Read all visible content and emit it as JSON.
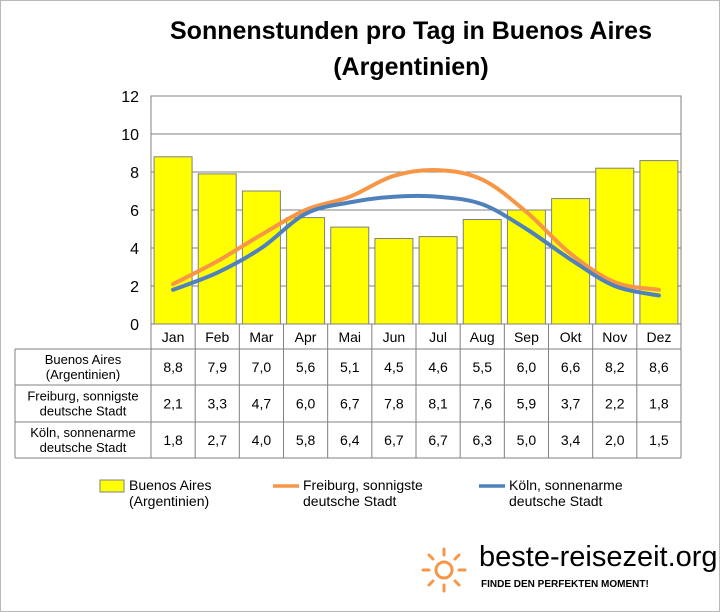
{
  "chart_data": {
    "type": "bar",
    "title_lines": [
      "Sonnenstunden pro Tag in Buenos Aires",
      "(Argentinien)"
    ],
    "xlabel": "",
    "ylabel": "",
    "categories": [
      "Jan",
      "Feb",
      "Mar",
      "Apr",
      "Mai",
      "Jun",
      "Jul",
      "Aug",
      "Sep",
      "Okt",
      "Nov",
      "Dez"
    ],
    "ylim": [
      0,
      12
    ],
    "yticks": [
      "0",
      "2",
      "4",
      "6",
      "8",
      "10",
      "12"
    ],
    "grid": true,
    "legend_position": "bottom",
    "series": [
      {
        "name_lines": [
          "Buenos Aires",
          "(Argentinien)"
        ],
        "type": "bar",
        "color": "#ffff00",
        "values": [
          8.8,
          7.9,
          7.0,
          5.6,
          5.1,
          4.5,
          4.6,
          5.5,
          6.0,
          6.6,
          8.2,
          8.6
        ],
        "labels": [
          "8,8",
          "7,9",
          "7,0",
          "5,6",
          "5,1",
          "4,5",
          "4,6",
          "5,5",
          "6,0",
          "6,6",
          "8,2",
          "8,6"
        ]
      },
      {
        "name_lines": [
          "Freiburg, sonnigste",
          "deutsche Stadt"
        ],
        "type": "line",
        "color": "#f79646",
        "values": [
          2.1,
          3.3,
          4.7,
          6.0,
          6.7,
          7.8,
          8.1,
          7.6,
          5.9,
          3.7,
          2.2,
          1.8
        ],
        "labels": [
          "2,1",
          "3,3",
          "4,7",
          "6,0",
          "6,7",
          "7,8",
          "8,1",
          "7,6",
          "5,9",
          "3,7",
          "2,2",
          "1,8"
        ]
      },
      {
        "name_lines": [
          "Köln, sonnenarme",
          "deutsche Stadt"
        ],
        "type": "line",
        "color": "#4f81bd",
        "values": [
          1.8,
          2.7,
          4.0,
          5.8,
          6.4,
          6.7,
          6.7,
          6.3,
          5.0,
          3.4,
          2.0,
          1.5
        ],
        "labels": [
          "1,8",
          "2,7",
          "4,0",
          "5,8",
          "6,4",
          "6,7",
          "6,7",
          "6,3",
          "5,0",
          "3,4",
          "2,0",
          "1,5"
        ]
      }
    ]
  },
  "logo": {
    "name": "beste-reisezeit.org",
    "slogan": "FINDE DEN PERFEKTEN MOMENT!",
    "icon": "sun-icon",
    "icon_color": "#f79646"
  }
}
